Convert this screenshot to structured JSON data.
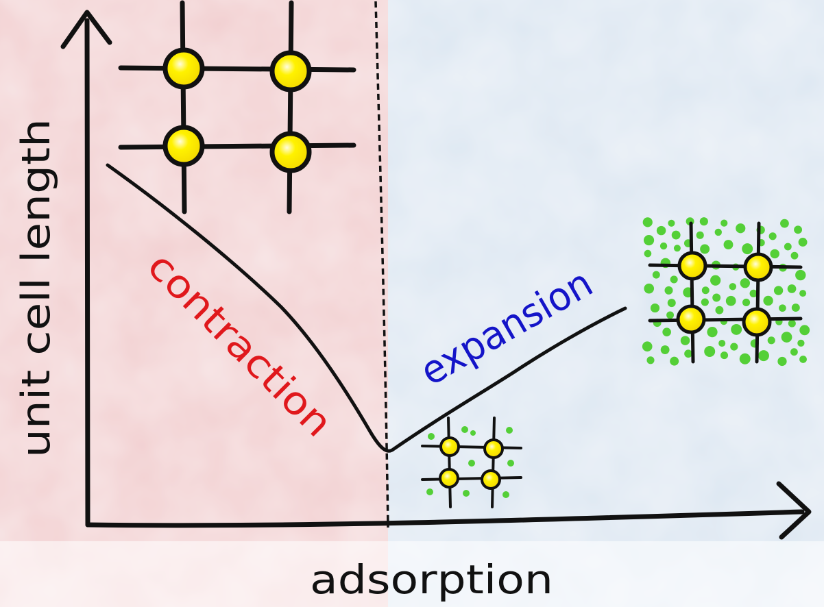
{
  "labels": {
    "y_axis": "unit cell length",
    "x_axis": "adsorption",
    "left_region": "contraction",
    "right_region": "expansion"
  },
  "colors": {
    "contraction_region": "#f2cfd0",
    "expansion_region": "#dde7f2",
    "contraction_text": "#e0181c",
    "expansion_text": "#1414c8",
    "node_fill": "#fff000",
    "guest_molecule": "#4ccd2c",
    "ink": "#111111"
  },
  "icons": {
    "empty_framework": "square-lattice-4-nodes",
    "small_framework": "square-lattice-4-nodes-with-guests",
    "expanded_framework": "square-lattice-4-nodes-filled-with-guests"
  }
}
